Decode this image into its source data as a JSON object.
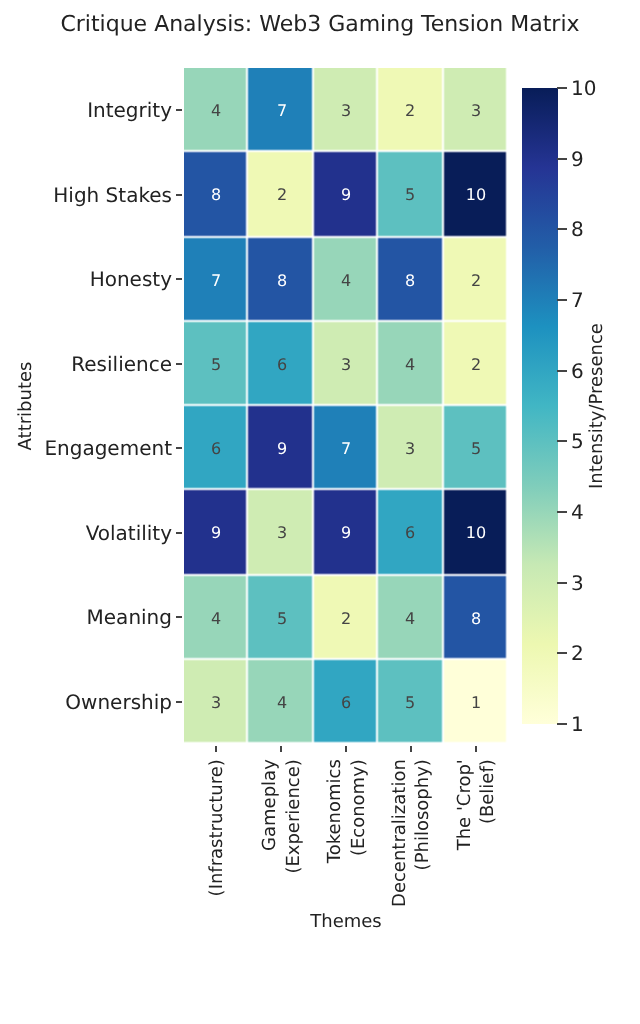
{
  "chart_data": {
    "type": "heatmap",
    "title": "Critique Analysis: Web3 Gaming Tension Matrix",
    "xlabel": "Themes",
    "ylabel": "Attributes",
    "clabel": "Intensity/Presence",
    "categories": [
      "(Infrastructure)",
      "Gameplay\n(Experience)",
      "Tokenomics\n(Economy)",
      "Decentralization\n(Philosophy)",
      "The 'Crop'\n(Belief)"
    ],
    "y_categories": [
      "Integrity",
      "High Stakes",
      "Honesty",
      "Resilience",
      "Engagement",
      "Volatility",
      "Meaning",
      "Ownership"
    ],
    "cells": [
      [
        4,
        7,
        3,
        2,
        3
      ],
      [
        8,
        2,
        9,
        5,
        10
      ],
      [
        7,
        8,
        4,
        8,
        2
      ],
      [
        5,
        6,
        3,
        4,
        2
      ],
      [
        6,
        9,
        7,
        3,
        5
      ],
      [
        9,
        3,
        9,
        6,
        10
      ],
      [
        4,
        5,
        2,
        4,
        8
      ],
      [
        3,
        4,
        6,
        5,
        1
      ]
    ],
    "clim": [
      1,
      10
    ],
    "cticks": [
      1,
      2,
      3,
      4,
      5,
      6,
      7,
      8,
      9,
      10
    ],
    "data_labels": true
  }
}
